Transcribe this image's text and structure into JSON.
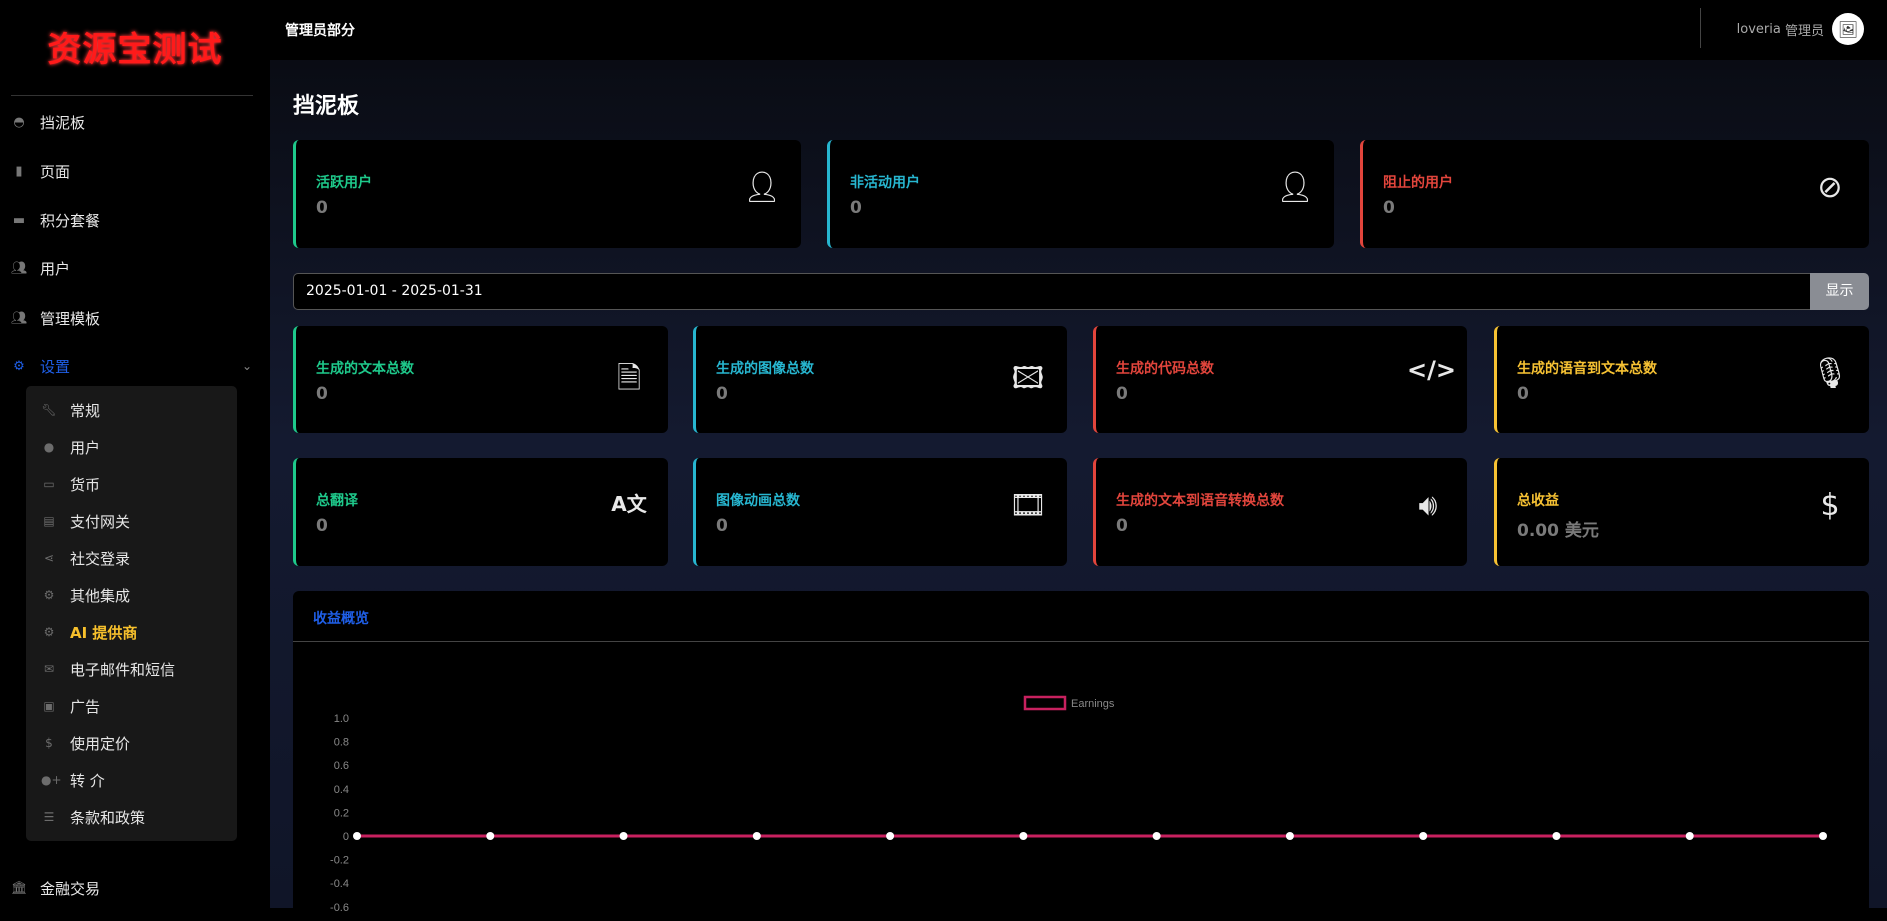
{
  "logo": "资源宝测试",
  "header": {
    "title": "管理员部分",
    "user_name": "loveria",
    "user_role": "管理员"
  },
  "sidebar": {
    "items": [
      {
        "label": "挡泥板",
        "icon": "gauge-icon"
      },
      {
        "label": "页面",
        "icon": "file-icon"
      },
      {
        "label": "积分套餐",
        "icon": "box-icon"
      },
      {
        "label": "用户",
        "icon": "users-icon"
      },
      {
        "label": "管理模板",
        "icon": "users-icon"
      },
      {
        "label": "设置",
        "icon": "gears-icon",
        "active": true,
        "expanded": true
      }
    ],
    "settings_items": [
      {
        "label": "常规",
        "icon": "wrench-icon"
      },
      {
        "label": "用户",
        "icon": "user-icon"
      },
      {
        "label": "货币",
        "icon": "money-bill-icon"
      },
      {
        "label": "支付网关",
        "icon": "credit-card-icon"
      },
      {
        "label": "社交登录",
        "icon": "share-icon"
      },
      {
        "label": "其他集成",
        "icon": "cog-icon"
      },
      {
        "label": "AI 提供商",
        "icon": "cog-icon",
        "highlighted": true
      },
      {
        "label": "电子邮件和短信",
        "icon": "envelope-open-icon"
      },
      {
        "label": "广告",
        "icon": "ad-icon"
      },
      {
        "label": "使用定价",
        "icon": "dollar-icon"
      },
      {
        "label": "转 介",
        "icon": "user-plus-icon"
      },
      {
        "label": "条款和政策",
        "icon": "list-check-icon"
      }
    ],
    "bottom_item": {
      "label": "金融交易",
      "icon": "bank-icon"
    }
  },
  "main": {
    "title": "挡泥板",
    "user_cards": [
      {
        "label": "活跃用户",
        "value": "0",
        "icon": "user-check-icon",
        "color": "#1ec98b"
      },
      {
        "label": "非活动用户",
        "value": "0",
        "icon": "user-times-icon",
        "color": "#27b6d0"
      },
      {
        "label": "阻止的用户",
        "value": "0",
        "icon": "user-slash-icon",
        "color": "#e2453c"
      }
    ],
    "date_range": "2025-01-01 - 2025-01-31",
    "show_button": "显示",
    "stat_cards": [
      {
        "label": "生成的文本总数",
        "value": "0",
        "icon": "file-text-icon"
      },
      {
        "label": "生成的图像总数",
        "value": "0",
        "icon": "images-icon"
      },
      {
        "label": "生成的代码总数",
        "value": "0",
        "icon": "code-icon"
      },
      {
        "label": "生成的语音到文本总数",
        "value": "0",
        "icon": "microphone-icon"
      },
      {
        "label": "总翻译",
        "value": "0",
        "icon": "language-icon"
      },
      {
        "label": "图像动画总数",
        "value": "0",
        "icon": "film-icon"
      },
      {
        "label": "生成的文本到语音转换总数",
        "value": "0",
        "icon": "volume-icon"
      },
      {
        "label": "总收益",
        "value": "0.00 美元",
        "icon": "hand-dollar-icon"
      }
    ],
    "chart_title": "收益概览"
  },
  "chart_data": {
    "type": "line",
    "legend_position": "top",
    "series": [
      {
        "name": "Earnings",
        "color": "#c8215f",
        "values": [
          0,
          0,
          0,
          0,
          0,
          0,
          0,
          0,
          0,
          0,
          0,
          0
        ]
      }
    ],
    "y_ticks": [
      "1.0",
      "0.8",
      "0.6",
      "0.4",
      "0.2",
      "0",
      "-0.2",
      "-0.4",
      "-0.6"
    ],
    "ylim": [
      -1,
      1
    ],
    "grid": false
  }
}
